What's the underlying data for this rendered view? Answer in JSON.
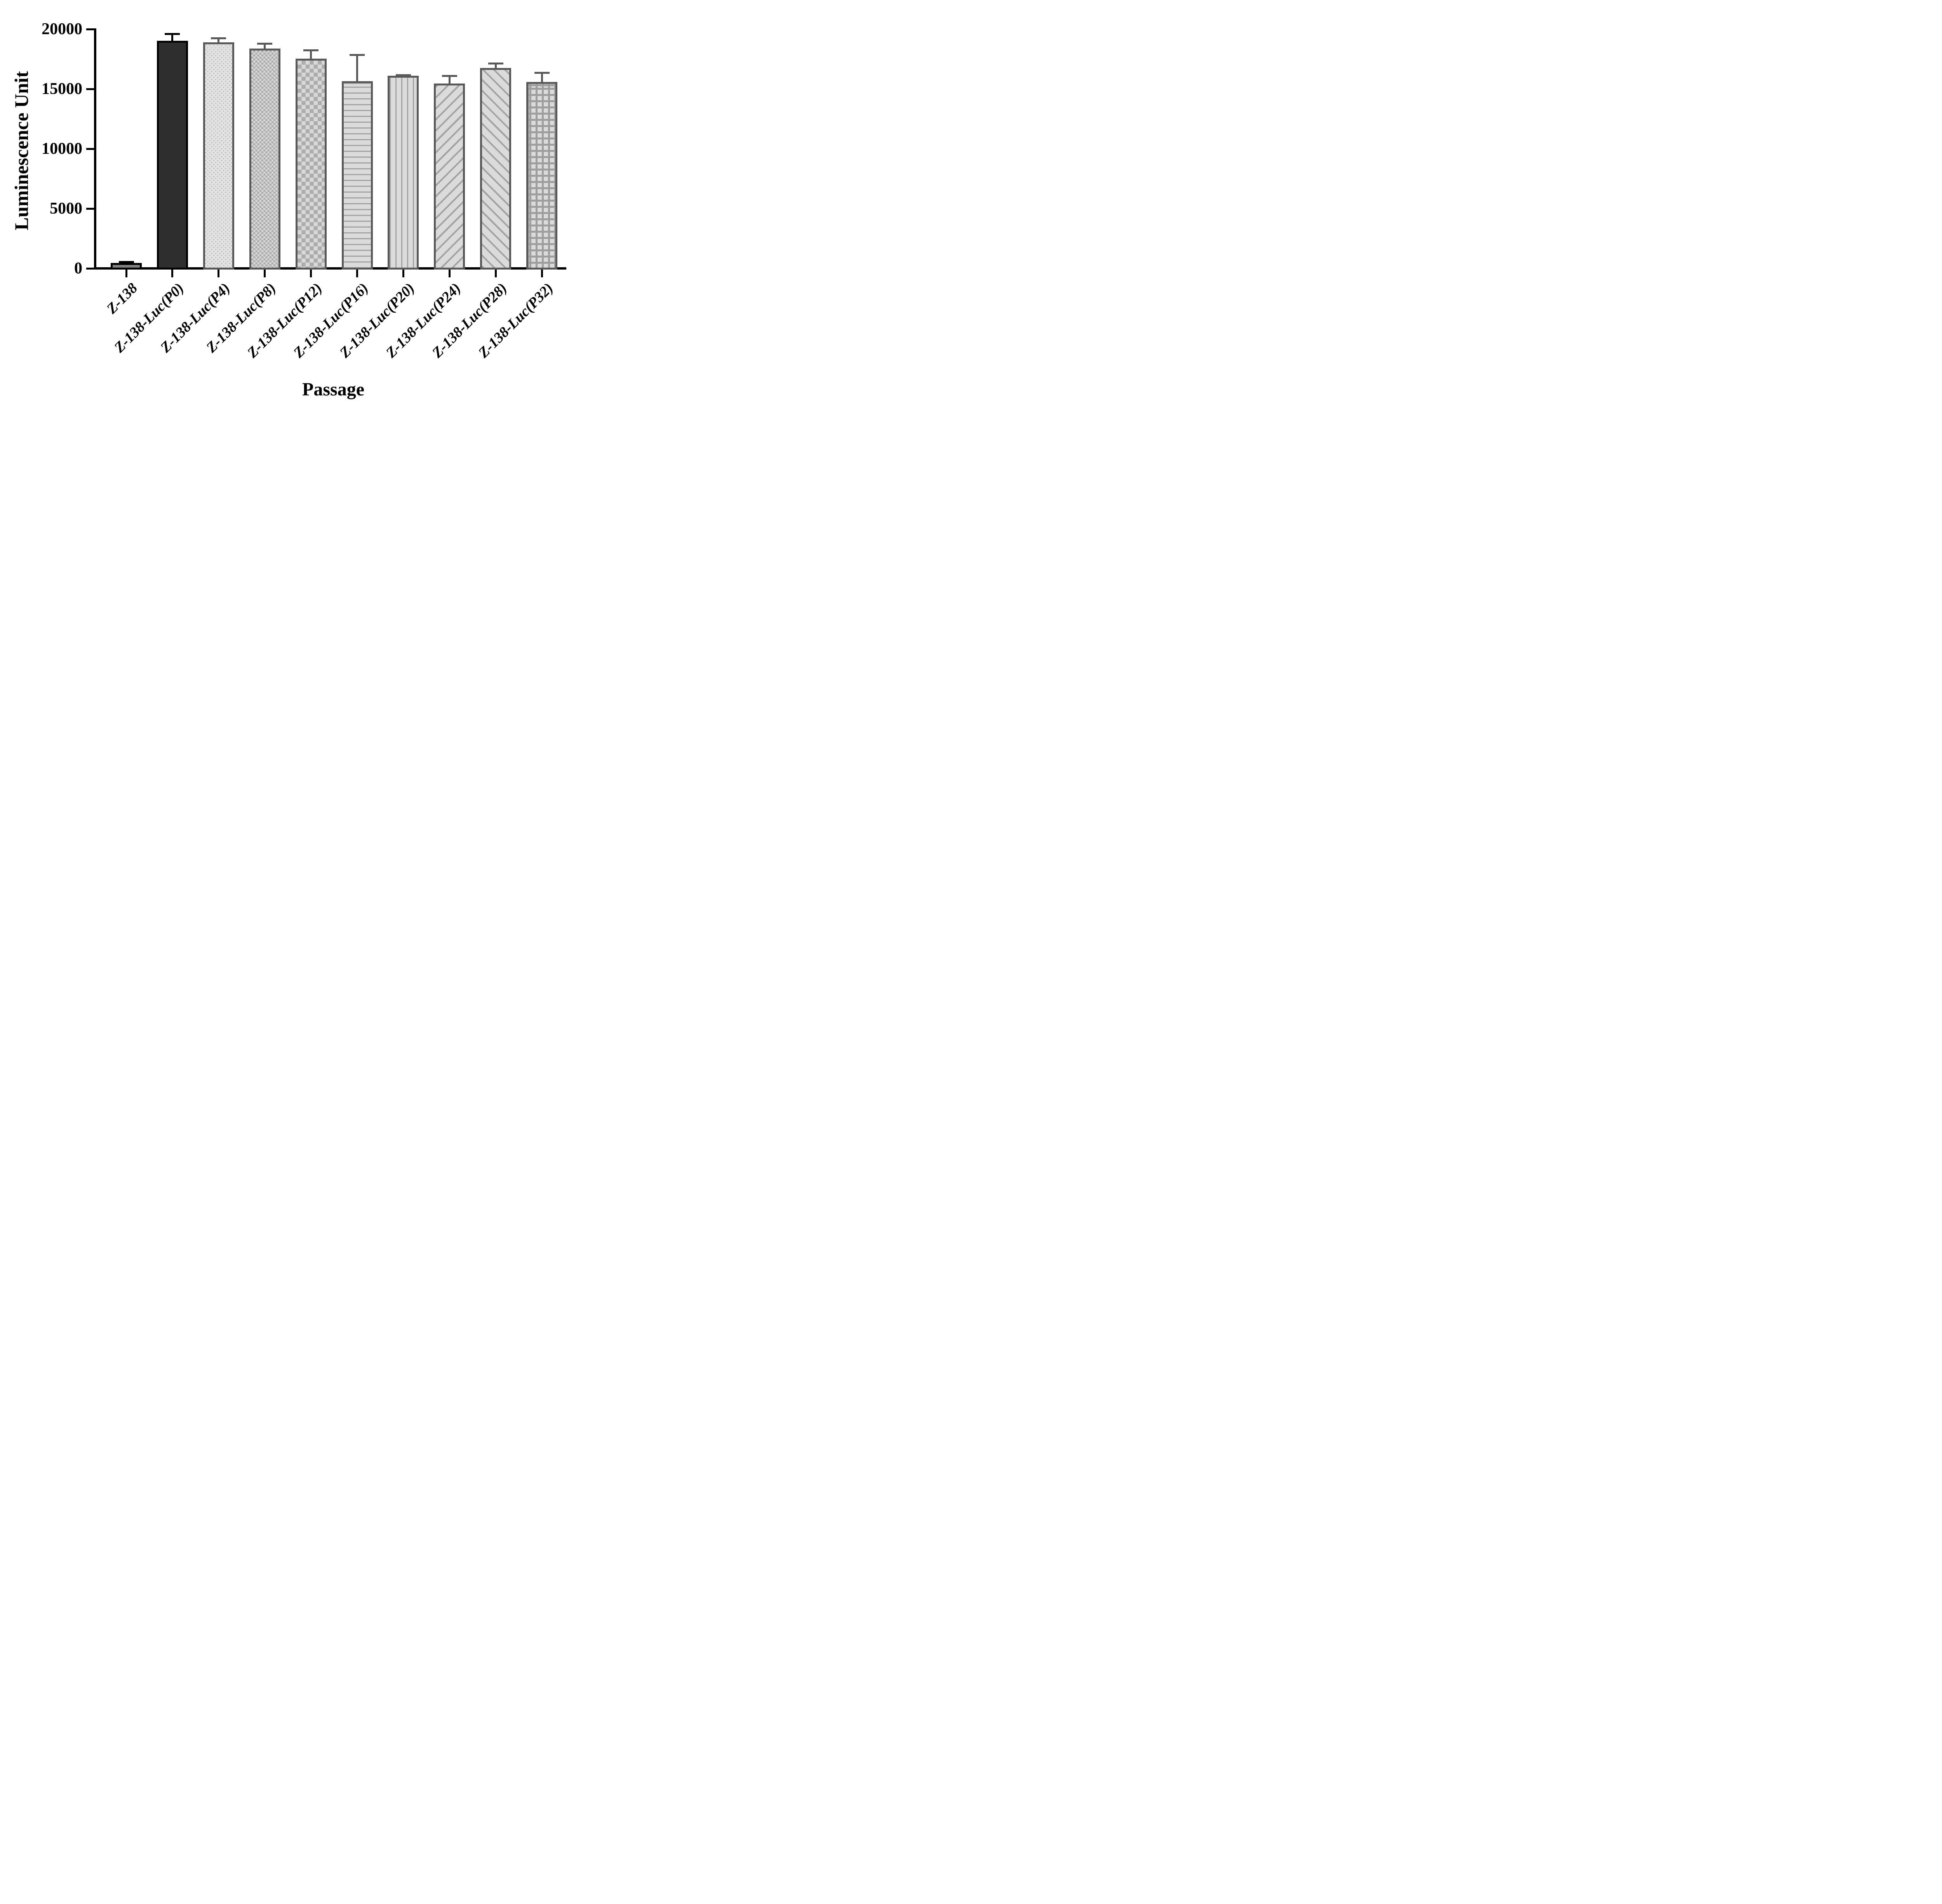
{
  "figure": {
    "background_color": "#ffffff",
    "axis_color": "#000000"
  },
  "chart_data": {
    "type": "bar",
    "title": "",
    "xlabel": "Passage",
    "ylabel": "Luminescence Unit",
    "ylim": [
      0,
      20000
    ],
    "yticks": [
      0,
      5000,
      10000,
      15000,
      20000
    ],
    "ytick_labels": [
      "0",
      "5000",
      "10000",
      "15000",
      "20000"
    ],
    "grid": false,
    "legend": false,
    "error_bars": "plus-only",
    "categories": [
      "Z-138",
      "Z-138-Luc(P0)",
      "Z-138-Luc(P4)",
      "Z-138-Luc(P8)",
      "Z-138-Luc(P12)",
      "Z-138-Luc(P16)",
      "Z-138-Luc(P20)",
      "Z-138-Luc(P24)",
      "Z-138-Luc(P28)",
      "Z-138-Luc(P32)"
    ],
    "series": [
      {
        "name": "Luminescence Unit",
        "values": [
          450,
          19050,
          18900,
          18400,
          17550,
          15650,
          16100,
          15450,
          16750,
          15600
        ],
        "errors_plus": [
          70,
          550,
          350,
          400,
          700,
          2200,
          60,
          650,
          400,
          750
        ]
      }
    ],
    "bar_styles": [
      {
        "pattern": "solid",
        "fill": "#808080",
        "accent": "#808080",
        "border": "#000000",
        "error_color": "#000000"
      },
      {
        "pattern": "solid",
        "fill": "#2e2e2e",
        "accent": "#2e2e2e",
        "border": "#000000",
        "error_color": "#000000"
      },
      {
        "pattern": "dots",
        "fill": "#e2e2e2",
        "accent": "#a6a6a6",
        "border": "#595959",
        "error_color": "#595959"
      },
      {
        "pattern": "checker-small",
        "fill": "#d8d8d8",
        "accent": "#acacac",
        "border": "#595959",
        "error_color": "#595959"
      },
      {
        "pattern": "checker-large",
        "fill": "#d8d8d8",
        "accent": "#acacac",
        "border": "#595959",
        "error_color": "#595959"
      },
      {
        "pattern": "hlines",
        "fill": "#dbdbdb",
        "accent": "#a3a3a3",
        "border": "#595959",
        "error_color": "#595959"
      },
      {
        "pattern": "vlines",
        "fill": "#dbdbdb",
        "accent": "#a3a3a3",
        "border": "#595959",
        "error_color": "#595959"
      },
      {
        "pattern": "diag-up",
        "fill": "#dbdbdb",
        "accent": "#a3a3a3",
        "border": "#595959",
        "error_color": "#595959"
      },
      {
        "pattern": "diag-down",
        "fill": "#dbdbdb",
        "accent": "#a3a3a3",
        "border": "#595959",
        "error_color": "#595959"
      },
      {
        "pattern": "grid",
        "fill": "#dbdbdb",
        "accent": "#9e9e9e",
        "border": "#595959",
        "error_color": "#595959"
      }
    ]
  }
}
